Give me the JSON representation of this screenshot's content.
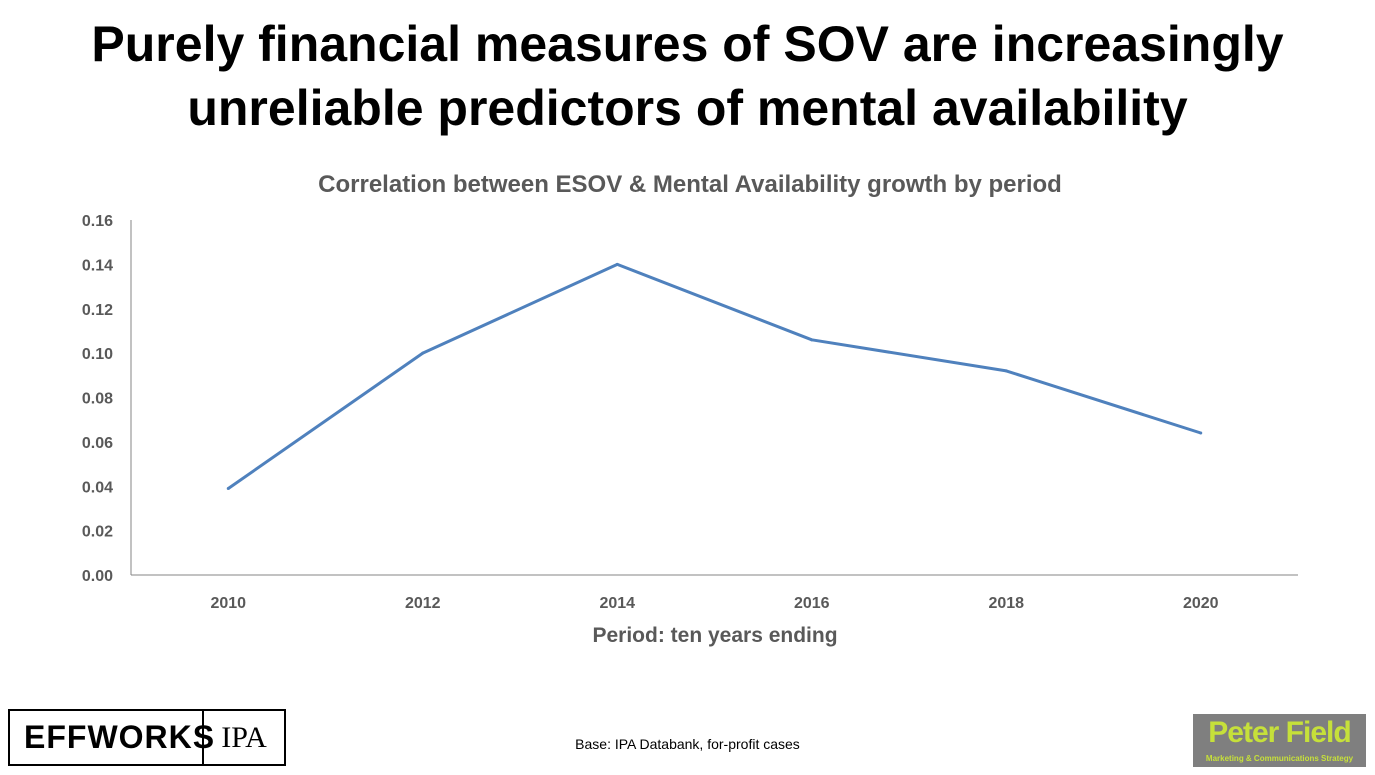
{
  "slide": {
    "title_line1": "Purely financial measures of SOV are increasingly",
    "title_line2": "unreliable predictors of mental availability",
    "footnote": "Base: IPA Databank, for-profit cases"
  },
  "logos": {
    "effworks_text": "EFFWORKS",
    "ipa_text": "IPA",
    "peter_field_name": "Peter Field",
    "peter_field_tagline": "Marketing & Communications Strategy"
  },
  "colors": {
    "series_line": "#4f81bd",
    "text_gray": "#595959",
    "axis_line": "#868686",
    "logo_green": "#c6e03a",
    "logo_bg": "#7f7f7f"
  },
  "chart_data": {
    "type": "line",
    "title": "Correlation between ESOV & Mental Availability growth by period",
    "xlabel": "Period: ten years ending",
    "ylabel": "",
    "categories": [
      "2010",
      "2012",
      "2014",
      "2016",
      "2018",
      "2020"
    ],
    "yticks": [
      "0.00",
      "0.02",
      "0.04",
      "0.06",
      "0.08",
      "0.10",
      "0.12",
      "0.14",
      "0.16"
    ],
    "ylim": [
      0,
      0.16
    ],
    "grid": false,
    "legend": "none",
    "series": [
      {
        "values": [
          0.039,
          0.1,
          0.14,
          0.106,
          0.092,
          0.064
        ]
      }
    ]
  }
}
